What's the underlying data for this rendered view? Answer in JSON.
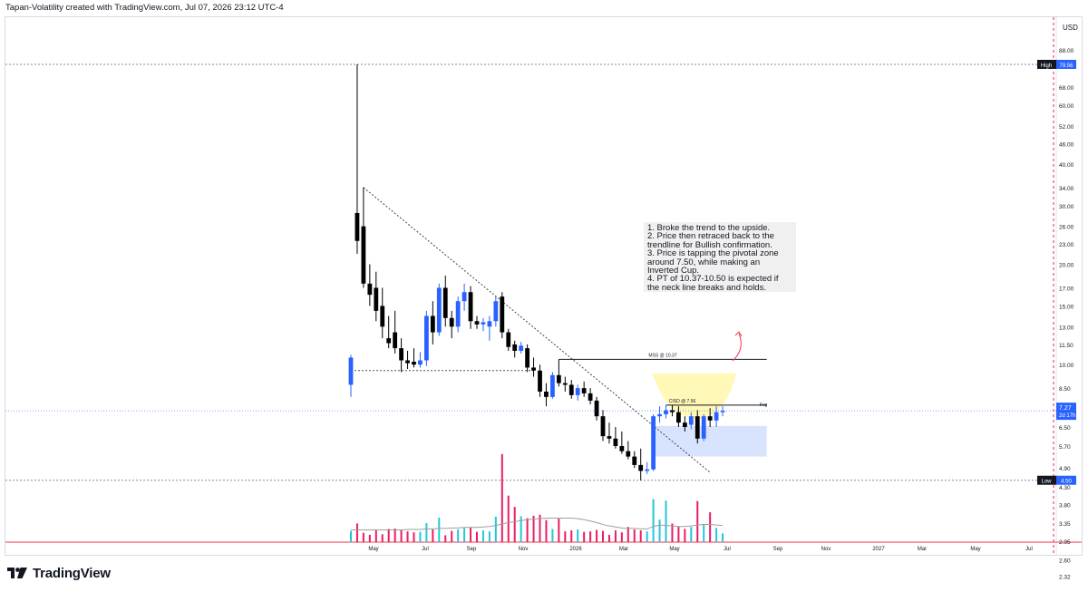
{
  "header": "Tapan-Volatility created with TradingView.com, Jul 07, 2026 23:12 UTC-4",
  "currency": "USD",
  "brand": "TradingView",
  "notes": [
    "1. Broke the trend to the upside.",
    "2. Price then retraced back to the trendline for Bullish confirmation.",
    "3. Price is tapping the pivotal zone around 7.50, while making an Inverted Cup.",
    "4. PT of 10.37-10.50 is expected if the neck line breaks and holds."
  ],
  "price_tags": [
    {
      "label": "High",
      "value": "79.56",
      "color": "#2962ff"
    },
    {
      "label": "Low",
      "value": "4.50",
      "color": "#2962ff"
    }
  ],
  "current_price": {
    "value": "7.27",
    "countdown": "2d 17h",
    "color": "#2962ff"
  },
  "annotations": {
    "mss": "MSS @ 10.37",
    "cisd": "CISD @ 7.56",
    "fvg": "Fvg"
  },
  "colors": {
    "up": "#2962ff",
    "down": "#000000",
    "vol_up": "#26c6da",
    "vol_down": "#e91e63",
    "zone": "#fff59d",
    "fvg": "#c7d7fe",
    "axis_text": "#131722",
    "hline": "#7a8aa8"
  },
  "chart_data": {
    "type": "candlestick",
    "scale": "log",
    "price_axis_ticks": [
      88.0,
      68.0,
      60.0,
      52.0,
      46.0,
      40.0,
      34.0,
      30.0,
      26.0,
      23.0,
      20.0,
      17.0,
      15.0,
      13.0,
      11.5,
      10.0,
      8.5,
      6.5,
      5.7,
      4.9,
      4.3,
      3.8,
      3.35,
      2.95,
      2.6,
      2.32
    ],
    "price_axis_labels": [
      "88.00",
      "68.00",
      "60.00",
      "52.00",
      "46.00",
      "40.00",
      "34.00",
      "30.00",
      "26.00",
      "23.00",
      "20.00",
      "17.00",
      "15.00",
      "13.00",
      "11.50",
      "10.00",
      "8.50",
      "6.50",
      "5.70",
      "4.90",
      "4.30",
      "3.80",
      "3.35",
      "2.95",
      "2.60",
      "2.32"
    ],
    "time_axis_labels": [
      "May",
      "Jul",
      "Sep",
      "Nov",
      "2026",
      "Mar",
      "May",
      "Jul",
      "Sep",
      "Nov",
      "2027",
      "Mar",
      "May",
      "Jul"
    ],
    "candles": [
      {
        "o": 8.7,
        "h": 10.7,
        "l": 8.0,
        "c": 10.5
      },
      {
        "o": 28.5,
        "h": 79.56,
        "l": 21.5,
        "c": 23.5
      },
      {
        "o": 26.0,
        "h": 34.0,
        "l": 17.0,
        "c": 17.5
      },
      {
        "o": 17.5,
        "h": 20.0,
        "l": 15.0,
        "c": 16.2
      },
      {
        "o": 17.0,
        "h": 19.0,
        "l": 13.5,
        "c": 14.5
      },
      {
        "o": 15.0,
        "h": 17.0,
        "l": 12.0,
        "c": 13.0
      },
      {
        "o": 12.0,
        "h": 14.0,
        "l": 11.2,
        "c": 11.6
      },
      {
        "o": 12.5,
        "h": 14.5,
        "l": 10.8,
        "c": 11.2
      },
      {
        "o": 11.2,
        "h": 12.0,
        "l": 9.5,
        "c": 10.3
      },
      {
        "o": 10.3,
        "h": 11.0,
        "l": 9.7,
        "c": 10.1
      },
      {
        "o": 10.2,
        "h": 11.2,
        "l": 9.8,
        "c": 10.0
      },
      {
        "o": 10.0,
        "h": 10.9,
        "l": 9.8,
        "c": 10.3
      },
      {
        "o": 10.3,
        "h": 14.5,
        "l": 9.9,
        "c": 14.0
      },
      {
        "o": 14.0,
        "h": 15.5,
        "l": 11.5,
        "c": 12.5
      },
      {
        "o": 12.5,
        "h": 17.5,
        "l": 12.2,
        "c": 17.0
      },
      {
        "o": 17.0,
        "h": 18.5,
        "l": 13.0,
        "c": 13.8
      },
      {
        "o": 13.8,
        "h": 14.5,
        "l": 12.0,
        "c": 13.0
      },
      {
        "o": 13.0,
        "h": 16.0,
        "l": 12.5,
        "c": 15.5
      },
      {
        "o": 15.5,
        "h": 17.5,
        "l": 14.5,
        "c": 16.5
      },
      {
        "o": 16.5,
        "h": 17.2,
        "l": 12.8,
        "c": 13.5
      },
      {
        "o": 13.5,
        "h": 14.0,
        "l": 12.8,
        "c": 13.2
      },
      {
        "o": 13.2,
        "h": 13.8,
        "l": 12.6,
        "c": 13.4
      },
      {
        "o": 13.0,
        "h": 14.0,
        "l": 11.8,
        "c": 13.5
      },
      {
        "o": 13.5,
        "h": 16.0,
        "l": 13.0,
        "c": 15.5
      },
      {
        "o": 16.0,
        "h": 16.5,
        "l": 12.0,
        "c": 12.5
      },
      {
        "o": 12.5,
        "h": 12.8,
        "l": 11.0,
        "c": 11.3
      },
      {
        "o": 11.5,
        "h": 11.8,
        "l": 10.5,
        "c": 11.0
      },
      {
        "o": 11.0,
        "h": 11.7,
        "l": 10.8,
        "c": 11.4
      },
      {
        "o": 11.2,
        "h": 11.5,
        "l": 9.5,
        "c": 9.8
      },
      {
        "o": 9.8,
        "h": 10.5,
        "l": 9.2,
        "c": 9.6
      },
      {
        "o": 9.6,
        "h": 10.0,
        "l": 8.0,
        "c": 8.3
      },
      {
        "o": 8.3,
        "h": 8.8,
        "l": 7.5,
        "c": 8.0
      },
      {
        "o": 8.0,
        "h": 9.5,
        "l": 7.9,
        "c": 9.3
      },
      {
        "o": 9.3,
        "h": 10.37,
        "l": 8.6,
        "c": 8.8
      },
      {
        "o": 8.8,
        "h": 9.2,
        "l": 8.3,
        "c": 8.7
      },
      {
        "o": 8.7,
        "h": 9.0,
        "l": 7.9,
        "c": 8.1
      },
      {
        "o": 8.1,
        "h": 8.7,
        "l": 7.8,
        "c": 8.5
      },
      {
        "o": 8.5,
        "h": 8.9,
        "l": 8.0,
        "c": 8.2
      },
      {
        "o": 8.2,
        "h": 8.5,
        "l": 7.6,
        "c": 7.8
      },
      {
        "o": 7.8,
        "h": 8.0,
        "l": 6.8,
        "c": 7.0
      },
      {
        "o": 7.0,
        "h": 7.3,
        "l": 5.9,
        "c": 6.1
      },
      {
        "o": 6.1,
        "h": 6.7,
        "l": 5.8,
        "c": 6.0
      },
      {
        "o": 6.0,
        "h": 6.5,
        "l": 5.6,
        "c": 5.7
      },
      {
        "o": 5.7,
        "h": 6.3,
        "l": 5.4,
        "c": 5.5
      },
      {
        "o": 5.5,
        "h": 5.9,
        "l": 5.2,
        "c": 5.3
      },
      {
        "o": 5.3,
        "h": 5.5,
        "l": 4.9,
        "c": 5.0
      },
      {
        "o": 5.0,
        "h": 5.6,
        "l": 4.5,
        "c": 4.8
      },
      {
        "o": 4.8,
        "h": 5.1,
        "l": 4.7,
        "c": 4.85
      },
      {
        "o": 4.85,
        "h": 7.1,
        "l": 4.8,
        "c": 7.0
      },
      {
        "o": 7.0,
        "h": 7.5,
        "l": 6.7,
        "c": 7.1
      },
      {
        "o": 7.1,
        "h": 7.56,
        "l": 6.9,
        "c": 7.3
      },
      {
        "o": 7.3,
        "h": 7.56,
        "l": 7.0,
        "c": 7.2
      },
      {
        "o": 7.2,
        "h": 7.5,
        "l": 6.5,
        "c": 6.7
      },
      {
        "o": 6.7,
        "h": 7.0,
        "l": 6.3,
        "c": 6.5
      },
      {
        "o": 6.6,
        "h": 7.2,
        "l": 6.4,
        "c": 7.0
      },
      {
        "o": 7.0,
        "h": 7.3,
        "l": 5.8,
        "c": 6.0
      },
      {
        "o": 6.0,
        "h": 7.1,
        "l": 5.9,
        "c": 7.0
      },
      {
        "o": 7.0,
        "h": 7.4,
        "l": 6.5,
        "c": 6.8
      },
      {
        "o": 6.8,
        "h": 7.5,
        "l": 6.5,
        "c": 7.2
      },
      {
        "o": 7.2,
        "h": 7.5,
        "l": 7.0,
        "c": 7.27
      }
    ],
    "volume": [
      2.3,
      3.8,
      1.9,
      1.5,
      2.4,
      1.6,
      2.7,
      2.8,
      2.5,
      2.2,
      2.0,
      2.1,
      3.9,
      2.6,
      5.0,
      1.4,
      2.3,
      2.6,
      2.9,
      3.0,
      2.1,
      2.4,
      2.2,
      5.2,
      18.0,
      9.5,
      7.2,
      5.3,
      4.9,
      5.4,
      5.6,
      4.5,
      2.7,
      4.8,
      2.2,
      2.4,
      2.6,
      2.1,
      2.2,
      2.5,
      2.3,
      1.5,
      2.4,
      2.0,
      3.1,
      2.6,
      2.4,
      2.2,
      8.8,
      4.6,
      8.5,
      3.8,
      3.2,
      2.7,
      3.1,
      8.4,
      3.6,
      6.1,
      2.9,
      1.8
    ],
    "volume_ma": [
      2.5,
      2.5,
      2.5,
      2.5,
      2.5,
      2.5,
      2.5,
      2.5,
      2.5,
      2.6,
      2.6,
      2.6,
      2.7,
      2.7,
      2.8,
      2.8,
      2.9,
      2.9,
      3.0,
      3.0,
      3.0,
      3.1,
      3.2,
      3.4,
      3.7,
      4.0,
      4.2,
      4.4,
      4.6,
      4.7,
      4.8,
      4.9,
      4.9,
      4.9,
      4.9,
      4.9,
      4.8,
      4.6,
      4.3,
      4.0,
      3.6,
      3.3,
      3.1,
      2.9,
      2.8,
      2.8,
      2.7,
      2.7,
      3.2,
      3.5,
      3.4,
      3.3,
      3.2,
      3.2,
      3.3,
      3.5,
      3.6,
      3.6,
      3.5,
      3.4
    ],
    "trendline": {
      "from": [
        2,
        34.0
      ],
      "to": [
        57,
        4.75
      ]
    },
    "lows_line": {
      "from": [
        0,
        9.6
      ],
      "to": [
        29,
        9.6
      ],
      "label": ""
    },
    "mss_line": {
      "from": [
        33,
        10.37
      ],
      "to": [
        66,
        10.37
      ],
      "value": 10.37
    },
    "cisd_line": {
      "from": [
        50,
        7.56
      ],
      "to": [
        66,
        7.56
      ],
      "value": 7.56
    },
    "fvg_zone": {
      "from": [
        48,
        6.55
      ],
      "to": [
        66,
        5.3
      ]
    },
    "high_level": 79.56,
    "low_level": 4.5
  }
}
